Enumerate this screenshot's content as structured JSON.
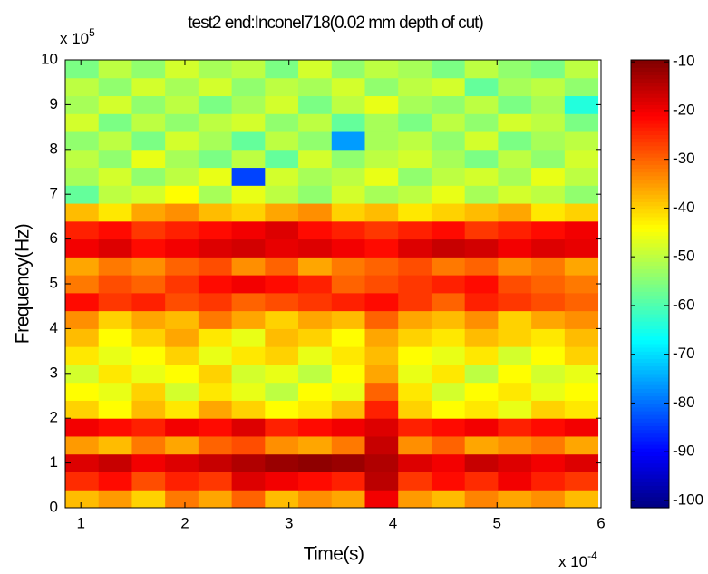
{
  "chart_data": {
    "type": "heatmap",
    "title": "test2 end:Inconel718(0.02 mm depth of cut)",
    "x_label": "Time(s)",
    "y_label": "Frequency(Hz)",
    "x_multiplier": {
      "base": "x 10",
      "exponent": "-4"
    },
    "y_multiplier": {
      "base": "x 10",
      "exponent": "5"
    },
    "xlim": [
      0.85,
      6
    ],
    "ylim": [
      0,
      10
    ],
    "xticks": [
      1,
      2,
      3,
      4,
      5,
      6
    ],
    "yticks": [
      0,
      1,
      2,
      3,
      4,
      5,
      6,
      7,
      8,
      9,
      10
    ],
    "colormap": "jet",
    "clim": [
      -101.5,
      -9.6
    ],
    "cticks": [
      -10,
      -20,
      -30,
      -40,
      -50,
      -60,
      -70,
      -80,
      -90,
      -100
    ],
    "x": [
      1.01,
      1.33,
      1.65,
      1.97,
      2.29,
      2.61,
      2.93,
      3.25,
      3.57,
      3.89,
      4.21,
      4.53,
      4.85,
      5.17,
      5.49,
      5.81
    ],
    "y": [
      0.2,
      0.6,
      1.0,
      1.4,
      1.8,
      2.2,
      2.6,
      3.0,
      3.4,
      3.8,
      4.2,
      4.6,
      5.0,
      5.4,
      5.8,
      6.2,
      6.6,
      7.0,
      7.4,
      7.8,
      8.2,
      8.6,
      9.0,
      9.4,
      9.8
    ],
    "values": [
      [
        -38,
        -35,
        -40,
        -32,
        -36,
        -30,
        -38,
        -34,
        -36,
        -20,
        -35,
        -38,
        -33,
        -36,
        -34,
        -38
      ],
      [
        -25,
        -22,
        -28,
        -24,
        -26,
        -18,
        -20,
        -22,
        -24,
        -15,
        -26,
        -22,
        -25,
        -20,
        -24,
        -26
      ],
      [
        -18,
        -16,
        -20,
        -18,
        -16,
        -14,
        -12,
        -11,
        -12,
        -14,
        -18,
        -20,
        -16,
        -18,
        -20,
        -18
      ],
      [
        -35,
        -38,
        -32,
        -36,
        -30,
        -28,
        -34,
        -36,
        -32,
        -16,
        -34,
        -30,
        -36,
        -34,
        -32,
        -36
      ],
      [
        -20,
        -22,
        -24,
        -20,
        -22,
        -18,
        -24,
        -22,
        -20,
        -18,
        -24,
        -22,
        -20,
        -24,
        -22,
        -20
      ],
      [
        -40,
        -44,
        -38,
        -42,
        -36,
        -40,
        -44,
        -42,
        -38,
        -24,
        -40,
        -44,
        -42,
        -46,
        -40,
        -42
      ],
      [
        -44,
        -46,
        -40,
        -48,
        -42,
        -46,
        -50,
        -44,
        -46,
        -30,
        -42,
        -48,
        -44,
        -42,
        -46,
        -44
      ],
      [
        -48,
        -42,
        -46,
        -44,
        -40,
        -48,
        -46,
        -50,
        -44,
        -36,
        -46,
        -42,
        -50,
        -44,
        -48,
        -46
      ],
      [
        -42,
        -46,
        -44,
        -40,
        -46,
        -42,
        -40,
        -46,
        -42,
        -38,
        -44,
        -46,
        -42,
        -48,
        -44,
        -40
      ],
      [
        -38,
        -44,
        -40,
        -36,
        -42,
        -46,
        -38,
        -40,
        -44,
        -36,
        -40,
        -42,
        -38,
        -40,
        -42,
        -38
      ],
      [
        -34,
        -40,
        -36,
        -38,
        -32,
        -36,
        -40,
        -36,
        -38,
        -30,
        -36,
        -38,
        -34,
        -40,
        -36,
        -34
      ],
      [
        -22,
        -26,
        -24,
        -28,
        -26,
        -30,
        -28,
        -26,
        -24,
        -22,
        -26,
        -30,
        -24,
        -26,
        -28,
        -30
      ],
      [
        -32,
        -28,
        -30,
        -26,
        -22,
        -20,
        -22,
        -24,
        -30,
        -28,
        -26,
        -24,
        -22,
        -28,
        -30,
        -32
      ],
      [
        -36,
        -32,
        -34,
        -30,
        -28,
        -34,
        -30,
        -36,
        -32,
        -30,
        -28,
        -32,
        -30,
        -34,
        -32,
        -36
      ],
      [
        -20,
        -18,
        -22,
        -20,
        -18,
        -17,
        -19,
        -18,
        -20,
        -22,
        -18,
        -16,
        -17,
        -20,
        -18,
        -19
      ],
      [
        -24,
        -22,
        -26,
        -24,
        -22,
        -20,
        -18,
        -22,
        -24,
        -26,
        -24,
        -22,
        -26,
        -24,
        -22,
        -20
      ],
      [
        -38,
        -42,
        -36,
        -34,
        -38,
        -40,
        -36,
        -34,
        -40,
        -38,
        -42,
        -40,
        -38,
        -36,
        -42,
        -40
      ],
      [
        -58,
        -50,
        -48,
        -44,
        -52,
        -46,
        -50,
        -54,
        -48,
        -52,
        -50,
        -46,
        -52,
        -48,
        -50,
        -54
      ],
      [
        -52,
        -48,
        -54,
        -50,
        -46,
        -84,
        -48,
        -52,
        -50,
        -46,
        -54,
        -50,
        -48,
        -52,
        -46,
        -50
      ],
      [
        -50,
        -54,
        -46,
        -52,
        -56,
        -50,
        -58,
        -48,
        -54,
        -50,
        -48,
        -52,
        -56,
        -50,
        -54,
        -48
      ],
      [
        -54,
        -50,
        -56,
        -48,
        -52,
        -58,
        -50,
        -54,
        -76,
        -52,
        -50,
        -54,
        -48,
        -56,
        -52,
        -50
      ],
      [
        -48,
        -56,
        -50,
        -54,
        -50,
        -48,
        -54,
        -50,
        -58,
        -52,
        -56,
        -50,
        -54,
        -48,
        -50,
        -56
      ],
      [
        -52,
        -48,
        -54,
        -50,
        -56,
        -52,
        -48,
        -56,
        -50,
        -46,
        -52,
        -54,
        -50,
        -56,
        -52,
        -64
      ],
      [
        -50,
        -54,
        -48,
        -52,
        -48,
        -54,
        -50,
        -52,
        -48,
        -54,
        -50,
        -48,
        -58,
        -52,
        -50,
        -54
      ],
      [
        -56,
        -50,
        -54,
        -48,
        -52,
        -50,
        -56,
        -48,
        -54,
        -50,
        -52,
        -56,
        -50,
        -54,
        -56,
        -50
      ]
    ]
  }
}
